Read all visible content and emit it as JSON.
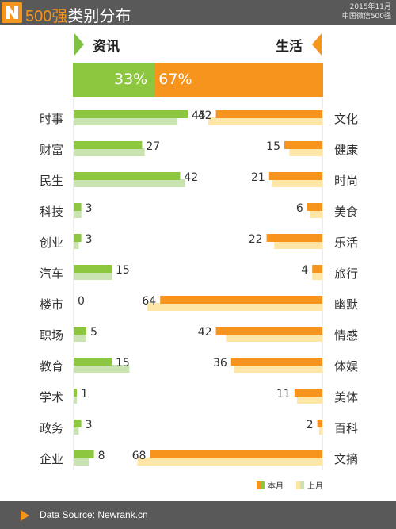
{
  "header": {
    "title_num": "500强",
    "title_rest": "类别分布",
    "date_line1": "2015年11月",
    "date_line2": "中国微信500强"
  },
  "labels": {
    "left": "资讯",
    "right": "生活"
  },
  "share": {
    "left_pct": "33%",
    "right_pct": "67%",
    "left_value": 33,
    "right_value": 67
  },
  "colors": {
    "left_current": "#8dc63f",
    "left_previous": "#c9e4b0",
    "right_current": "#f7941d",
    "right_previous": "#fde6a6",
    "header": "#595959"
  },
  "legend": {
    "current": "本月",
    "previous": "上月"
  },
  "chart_data": {
    "type": "bar",
    "orientation": "horizontal-diverging",
    "title": "500强类别分布",
    "left": {
      "group": "资讯",
      "categories": [
        "时事",
        "财富",
        "民生",
        "科技",
        "创业",
        "汽车",
        "楼市",
        "职场",
        "教育",
        "学术",
        "政务",
        "企业"
      ],
      "series": [
        {
          "name": "本月",
          "values": [
            45,
            27,
            42,
            3,
            3,
            15,
            0,
            5,
            15,
            1,
            3,
            8
          ]
        },
        {
          "name": "上月",
          "values": [
            41,
            28,
            44,
            3,
            2,
            15,
            0,
            5,
            22,
            1,
            2,
            6
          ]
        }
      ]
    },
    "right": {
      "group": "生活",
      "categories": [
        "文化",
        "健康",
        "时尚",
        "美食",
        "乐活",
        "旅行",
        "幽默",
        "情感",
        "体娱",
        "美体",
        "百科",
        "文摘"
      ],
      "series": [
        {
          "name": "本月",
          "values": [
            42,
            15,
            21,
            6,
            22,
            4,
            64,
            42,
            36,
            11,
            2,
            68
          ]
        },
        {
          "name": "上月",
          "values": [
            45,
            13,
            20,
            5,
            19,
            4,
            69,
            38,
            35,
            10,
            1,
            73
          ]
        }
      ]
    },
    "legend_position": "bottom-right",
    "grid": false
  },
  "footer": {
    "source": "Data Source: Newrank.cn"
  }
}
